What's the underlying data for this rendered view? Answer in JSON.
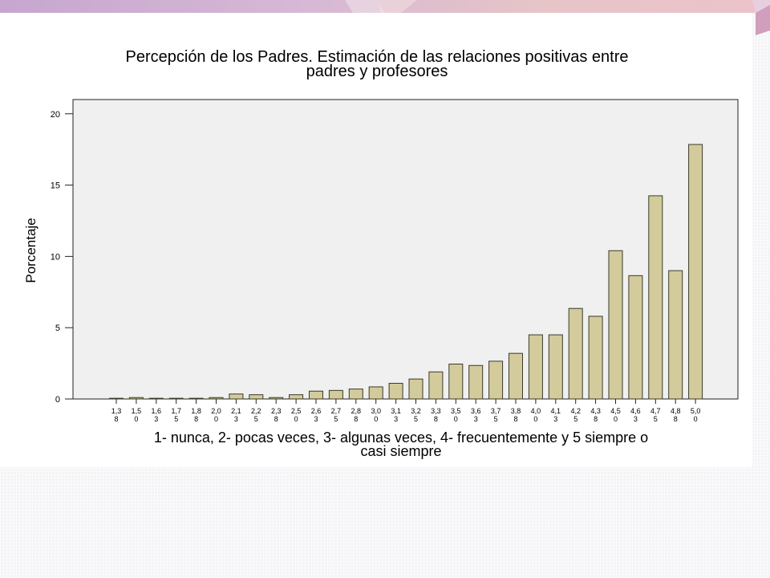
{
  "chart_data": {
    "type": "bar",
    "title_lines": [
      "Percepción de los Padres. Estimación de las relaciones positivas entre",
      "padres y profesores"
    ],
    "ylabel": "Porcentaje",
    "xlabel_lines": [
      "1- nunca, 2- pocas veces, 3- algunas veces, 4- frecuentemente y 5 siempre o",
      "casi siempre"
    ],
    "ylim": [
      0,
      21
    ],
    "yticks": [
      "0",
      "5",
      "10",
      "15",
      "20"
    ],
    "categories": [
      [
        "1,3",
        "8"
      ],
      [
        "1,5",
        "0"
      ],
      [
        "1,6",
        "3"
      ],
      [
        "1,7",
        "5"
      ],
      [
        "1,8",
        "8"
      ],
      [
        "2,0",
        "0"
      ],
      [
        "2,1",
        "3"
      ],
      [
        "2,2",
        "5"
      ],
      [
        "2,3",
        "8"
      ],
      [
        "2,5",
        "0"
      ],
      [
        "2,6",
        "3"
      ],
      [
        "2,7",
        "5"
      ],
      [
        "2,8",
        "8"
      ],
      [
        "3,0",
        "0"
      ],
      [
        "3,1",
        "3"
      ],
      [
        "3,2",
        "5"
      ],
      [
        "3,3",
        "8"
      ],
      [
        "3,5",
        "0"
      ],
      [
        "3,6",
        "3"
      ],
      [
        "3,7",
        "5"
      ],
      [
        "3,8",
        "8"
      ],
      [
        "4,0",
        "0"
      ],
      [
        "4,1",
        "3"
      ],
      [
        "4,2",
        "5"
      ],
      [
        "4,3",
        "8"
      ],
      [
        "4,5",
        "0"
      ],
      [
        "4,6",
        "3"
      ],
      [
        "4,7",
        "5"
      ],
      [
        "4,8",
        "8"
      ],
      [
        "5,0",
        "0"
      ]
    ],
    "values": [
      0.05,
      0.1,
      0.05,
      0.05,
      0.05,
      0.1,
      0.35,
      0.3,
      0.1,
      0.3,
      0.55,
      0.6,
      0.7,
      0.85,
      1.1,
      1.4,
      1.9,
      2.45,
      2.35,
      2.65,
      3.2,
      4.5,
      4.5,
      6.35,
      5.8,
      10.4,
      8.65,
      14.25,
      9.0,
      17.85
    ],
    "grid": false,
    "colors": {
      "bar_fill": "#d3cb9b",
      "bar_stroke": "#3a3a2a",
      "plot_background": "#f0f0f0",
      "axis": "#222222"
    }
  }
}
